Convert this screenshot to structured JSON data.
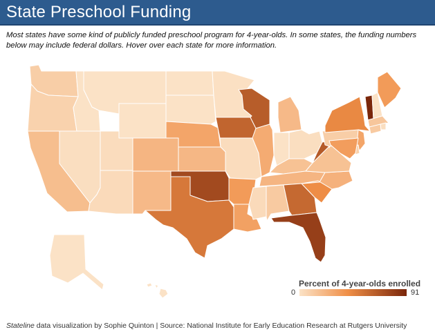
{
  "title": "State Preschool Funding",
  "intro": "Most states have some kind of publicly funded preschool program for 4-year-olds. In some states, the funding numbers below may include federal dollars. Hover over each state for more information.",
  "legend": {
    "title": "Percent of 4-year-olds enrolled",
    "min": "0",
    "max": "91",
    "min_value": 0,
    "max_value": 91,
    "color_low": "#fbe2c6",
    "color_mid": "#f08f47",
    "color_high": "#7a260a"
  },
  "footer": {
    "source_italic": "Stateline",
    "source_text": " data visualization by Sophie Quinton | Source: National Institute for Early Education Research at Rutgers University"
  },
  "states": [
    {
      "name": "Washington",
      "value": 10
    },
    {
      "name": "Oregon",
      "value": 8
    },
    {
      "name": "California",
      "value": 18
    },
    {
      "name": "Nevada",
      "value": 2
    },
    {
      "name": "Idaho",
      "value": 0
    },
    {
      "name": "Montana",
      "value": 0
    },
    {
      "name": "Wyoming",
      "value": 0
    },
    {
      "name": "Utah",
      "value": 3
    },
    {
      "name": "Arizona",
      "value": 4
    },
    {
      "name": "Colorado",
      "value": 22
    },
    {
      "name": "New Mexico",
      "value": 20
    },
    {
      "name": "North Dakota",
      "value": 0
    },
    {
      "name": "South Dakota",
      "value": 0
    },
    {
      "name": "Nebraska",
      "value": 30
    },
    {
      "name": "Kansas",
      "value": 21
    },
    {
      "name": "Oklahoma",
      "value": 74
    },
    {
      "name": "Texas",
      "value": 52
    },
    {
      "name": "Minnesota",
      "value": 1
    },
    {
      "name": "Iowa",
      "value": 61
    },
    {
      "name": "Missouri",
      "value": 3
    },
    {
      "name": "Arkansas",
      "value": 35
    },
    {
      "name": "Louisiana",
      "value": 32
    },
    {
      "name": "Wisconsin",
      "value": 65
    },
    {
      "name": "Illinois",
      "value": 27
    },
    {
      "name": "Michigan",
      "value": 20
    },
    {
      "name": "Indiana",
      "value": 0
    },
    {
      "name": "Ohio",
      "value": 2
    },
    {
      "name": "Kentucky",
      "value": 16
    },
    {
      "name": "Tennessee",
      "value": 22
    },
    {
      "name": "Mississippi",
      "value": 4
    },
    {
      "name": "Alabama",
      "value": 12
    },
    {
      "name": "Georgia",
      "value": 59
    },
    {
      "name": "Florida",
      "value": 79
    },
    {
      "name": "South Carolina",
      "value": 42
    },
    {
      "name": "North Carolina",
      "value": 24
    },
    {
      "name": "Virginia",
      "value": 16
    },
    {
      "name": "West Virginia",
      "value": 66
    },
    {
      "name": "Pennsylvania",
      "value": 10
    },
    {
      "name": "New York",
      "value": 44
    },
    {
      "name": "Vermont",
      "value": 91
    },
    {
      "name": "New Hampshire",
      "value": 0
    },
    {
      "name": "Maine",
      "value": 35
    },
    {
      "name": "Massachusetts",
      "value": 14
    },
    {
      "name": "Rhode Island",
      "value": 2
    },
    {
      "name": "Connecticut",
      "value": 12
    },
    {
      "name": "New Jersey",
      "value": 30
    },
    {
      "name": "Delaware",
      "value": 8
    },
    {
      "name": "Maryland",
      "value": 34
    },
    {
      "name": "Alaska",
      "value": 0
    },
    {
      "name": "Hawaii",
      "value": 0
    }
  ]
}
